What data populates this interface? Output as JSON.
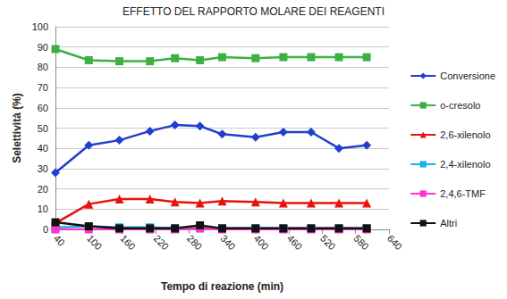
{
  "chart_data": {
    "type": "line",
    "title": "EFFETTO DEL RAPPORTO MOLARE DEI REAGENTI",
    "x_label": "Tempo di reazione (min)",
    "y_label": "Selettività (%)",
    "x": [
      40,
      100,
      155,
      210,
      255,
      300,
      340,
      400,
      450,
      500,
      550,
      600
    ],
    "xlim": [
      40,
      640
    ],
    "xticks": [
      40,
      100,
      160,
      220,
      280,
      340,
      400,
      460,
      520,
      580,
      640
    ],
    "ylim": [
      0,
      100
    ],
    "yticks": [
      0,
      10,
      20,
      30,
      40,
      50,
      60,
      70,
      80,
      90,
      100
    ],
    "grid": true,
    "legend": "right",
    "series": [
      {
        "name": "Conversione",
        "color": "#1f3fd0",
        "marker": "diamond",
        "line_style": "solid",
        "values": [
          28,
          41.5,
          44,
          48.5,
          51.5,
          51,
          47,
          45.5,
          48,
          48,
          40,
          41.5
        ]
      },
      {
        "name": "o-cresolo",
        "color": "#3cb043",
        "marker": "square",
        "line_style": "solid",
        "values": [
          89,
          83.5,
          83,
          83,
          84.5,
          83.5,
          85,
          84.5,
          85,
          85,
          85,
          85
        ]
      },
      {
        "name": "2,6-xilenolo",
        "color": "#e8120c",
        "marker": "triangle",
        "line_style": "solid",
        "values": [
          3,
          12.5,
          15,
          15,
          13.5,
          13,
          14,
          13.5,
          13,
          13,
          13,
          13
        ]
      },
      {
        "name": "2,4-xilenolo",
        "color": "#1ab2e8",
        "marker": "square",
        "line_style": "solid",
        "values": [
          1,
          1.5,
          1,
          1,
          0.5,
          0.5,
          0.5,
          0.5,
          0.5,
          0.5,
          0.5,
          0.5
        ]
      },
      {
        "name": "2,4,6-TMF",
        "color": "#ff33cc",
        "marker": "square",
        "line_style": "solid",
        "values": [
          0,
          0,
          0,
          0,
          0,
          0.5,
          0,
          0,
          0,
          0,
          0,
          0
        ]
      },
      {
        "name": "Altri",
        "color": "#111111",
        "marker": "square",
        "line_style": "solid",
        "values": [
          3.5,
          1.5,
          0.5,
          0.5,
          0.5,
          2,
          0.5,
          0.5,
          0.5,
          0.5,
          0.5,
          0.5
        ]
      }
    ]
  }
}
